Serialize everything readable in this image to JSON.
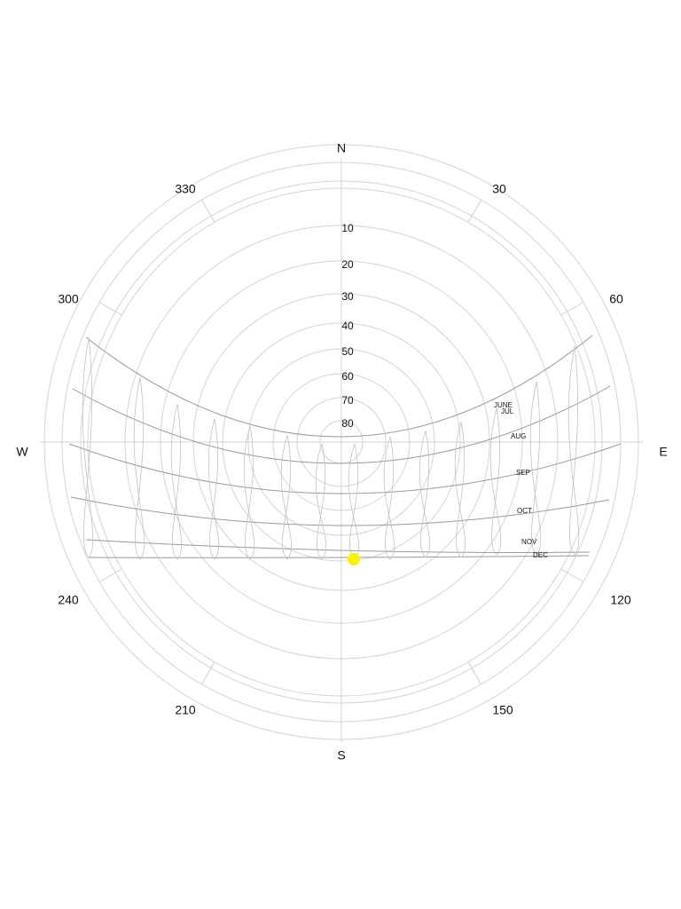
{
  "compass": {
    "north": "N",
    "east": "E",
    "south": "S",
    "west": "W"
  },
  "azimuth_labels": [
    "30",
    "60",
    "120",
    "150",
    "210",
    "240",
    "300",
    "330"
  ],
  "altitude_labels": [
    "10",
    "20",
    "30",
    "40",
    "50",
    "60",
    "70",
    "80"
  ],
  "month_labels": [
    "JUNE",
    "JUL",
    "AUG",
    "SEP",
    "OCT",
    "NOV",
    "DEC"
  ]
}
